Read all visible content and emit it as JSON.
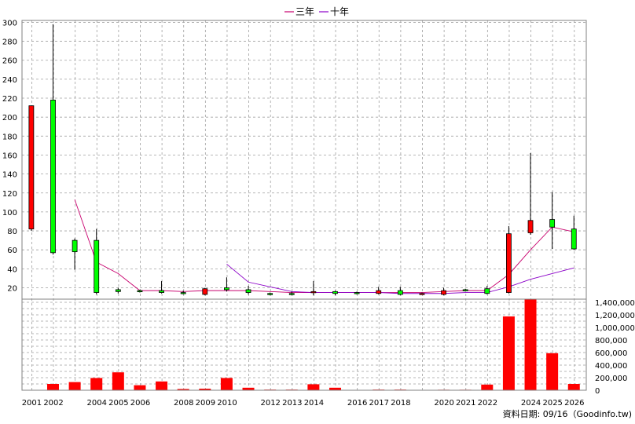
{
  "legend": [
    {
      "label": "三年",
      "color": "#c8006e"
    },
    {
      "label": "十年",
      "color": "#8b00c8"
    }
  ],
  "footer": "資料日期: 09/16（Goodinfo.tw)",
  "colors": {
    "up": "#ff0000",
    "down": "#00ff00",
    "volume": "#ff0000",
    "grid": "#a0a0a0"
  },
  "chart_data": {
    "type": "candlestick",
    "title": "",
    "x_tick_labels": [
      "2001",
      "2002",
      "2004",
      "2005",
      "2006",
      "2008",
      "2009",
      "2010",
      "2012",
      "2013",
      "2014",
      "2016",
      "2017",
      "2018",
      "2020",
      "2021",
      "2022",
      "2024",
      "2025",
      "2026"
    ],
    "price_axis": {
      "ticks": [
        "20",
        "40",
        "60",
        "80",
        "100",
        "120",
        "140",
        "160",
        "180",
        "200",
        "220",
        "240",
        "260",
        "280",
        "300"
      ],
      "ylim": [
        8,
        302
      ]
    },
    "volume_axis": {
      "ticks": [
        "0",
        "200,000",
        "400,000",
        "600,000",
        "800,000",
        "1,000,000",
        "1,200,000",
        "1,400,000"
      ],
      "ylim": [
        0,
        1450000
      ]
    },
    "grid": true,
    "legend_position": "top-center",
    "candles": [
      {
        "x": 2000.98,
        "open": 82,
        "close": 212,
        "high": 212,
        "low": 80
      },
      {
        "x": 2001.98,
        "open": 218,
        "close": 57,
        "high": 298,
        "low": 55
      },
      {
        "x": 2002.98,
        "open": 70,
        "close": 58,
        "high": 72,
        "low": 39
      },
      {
        "x": 2003.98,
        "open": 70,
        "close": 15,
        "high": 82,
        "low": 13
      },
      {
        "x": 2004.98,
        "open": 18,
        "close": 16,
        "high": 20,
        "low": 14
      },
      {
        "x": 2005.98,
        "open": 17,
        "close": 16,
        "high": 18,
        "low": 15
      },
      {
        "x": 2006.98,
        "open": 17,
        "close": 15,
        "high": 27,
        "low": 14
      },
      {
        "x": 2007.98,
        "open": 15,
        "close": 14,
        "high": 17,
        "low": 13
      },
      {
        "x": 2008.98,
        "open": 13,
        "close": 19,
        "high": 20,
        "low": 12
      },
      {
        "x": 2009.98,
        "open": 20,
        "close": 18,
        "high": 31,
        "low": 16
      },
      {
        "x": 2010.98,
        "open": 18,
        "close": 15,
        "high": 22,
        "low": 13
      },
      {
        "x": 2011.98,
        "open": 14,
        "close": 13,
        "high": 15,
        "low": 12
      },
      {
        "x": 2012.98,
        "open": 14,
        "close": 13,
        "high": 16,
        "low": 12
      },
      {
        "x": 2013.98,
        "open": 15,
        "close": 16,
        "high": 27,
        "low": 12
      },
      {
        "x": 2014.98,
        "open": 16,
        "close": 14,
        "high": 17,
        "low": 12
      },
      {
        "x": 2015.98,
        "open": 15,
        "close": 14,
        "high": 16,
        "low": 13
      },
      {
        "x": 2016.98,
        "open": 14,
        "close": 17,
        "high": 21,
        "low": 13
      },
      {
        "x": 2017.98,
        "open": 17,
        "close": 13,
        "high": 21,
        "low": 12
      },
      {
        "x": 2018.98,
        "open": 14,
        "close": 14,
        "high": 15,
        "low": 13
      },
      {
        "x": 2019.98,
        "open": 13,
        "close": 17,
        "high": 20,
        "low": 12
      },
      {
        "x": 2020.98,
        "open": 18,
        "close": 17,
        "high": 19,
        "low": 16
      },
      {
        "x": 2021.98,
        "open": 19,
        "close": 14,
        "high": 22,
        "low": 13
      },
      {
        "x": 2022.98,
        "open": 15,
        "close": 77,
        "high": 85,
        "low": 14
      },
      {
        "x": 2023.98,
        "open": 78,
        "close": 91,
        "high": 162,
        "low": 76
      },
      {
        "x": 2024.98,
        "open": 92,
        "close": 84,
        "high": 121,
        "low": 61
      },
      {
        "x": 2025.98,
        "open": 82,
        "close": 61,
        "high": 96,
        "low": 60
      }
    ],
    "ma_3yr": {
      "name": "三年",
      "x": [
        2002.98,
        2003.98,
        2004.98,
        2005.98,
        2006.98,
        2007.98,
        2008.98,
        2009.98,
        2010.98,
        2011.98,
        2012.98,
        2013.98,
        2014.98,
        2015.98,
        2016.98,
        2017.98,
        2018.98,
        2019.98,
        2020.98,
        2021.98,
        2022.98,
        2023.98,
        2024.98,
        2025.98
      ],
      "values": [
        113,
        47,
        35,
        17,
        17,
        16,
        17,
        17,
        17,
        16,
        15,
        15,
        15,
        15,
        15,
        15,
        15,
        16,
        17,
        17,
        34,
        60,
        84,
        79
      ]
    },
    "ma_10yr": {
      "name": "十年",
      "x": [
        2009.98,
        2010.98,
        2011.98,
        2012.98,
        2013.98,
        2014.98,
        2015.98,
        2016.98,
        2017.98,
        2018.98,
        2019.98,
        2020.98,
        2021.98,
        2022.98,
        2023.98,
        2024.98,
        2025.98
      ],
      "values": [
        45,
        26,
        21,
        16,
        15,
        15,
        15,
        15,
        14,
        14,
        14,
        15,
        15,
        21,
        29,
        35,
        41
      ]
    },
    "volume": [
      {
        "x": 2001.98,
        "value": 100000
      },
      {
        "x": 2002.98,
        "value": 130000
      },
      {
        "x": 2003.98,
        "value": 195000
      },
      {
        "x": 2004.98,
        "value": 285000
      },
      {
        "x": 2005.98,
        "value": 80000
      },
      {
        "x": 2006.98,
        "value": 140000
      },
      {
        "x": 2007.98,
        "value": 20000
      },
      {
        "x": 2008.98,
        "value": 25000
      },
      {
        "x": 2009.98,
        "value": 195000
      },
      {
        "x": 2010.98,
        "value": 40000
      },
      {
        "x": 2011.98,
        "value": 10000
      },
      {
        "x": 2012.98,
        "value": 10000
      },
      {
        "x": 2013.98,
        "value": 95000
      },
      {
        "x": 2014.98,
        "value": 40000
      },
      {
        "x": 2015.98,
        "value": 5000
      },
      {
        "x": 2016.98,
        "value": 10000
      },
      {
        "x": 2017.98,
        "value": 10000
      },
      {
        "x": 2019.98,
        "value": 8000
      },
      {
        "x": 2020.98,
        "value": 8000
      },
      {
        "x": 2021.98,
        "value": 90000
      },
      {
        "x": 2022.98,
        "value": 1175000
      },
      {
        "x": 2023.98,
        "value": 1500000
      },
      {
        "x": 2024.98,
        "value": 590000
      },
      {
        "x": 2025.98,
        "value": 100000
      }
    ]
  }
}
